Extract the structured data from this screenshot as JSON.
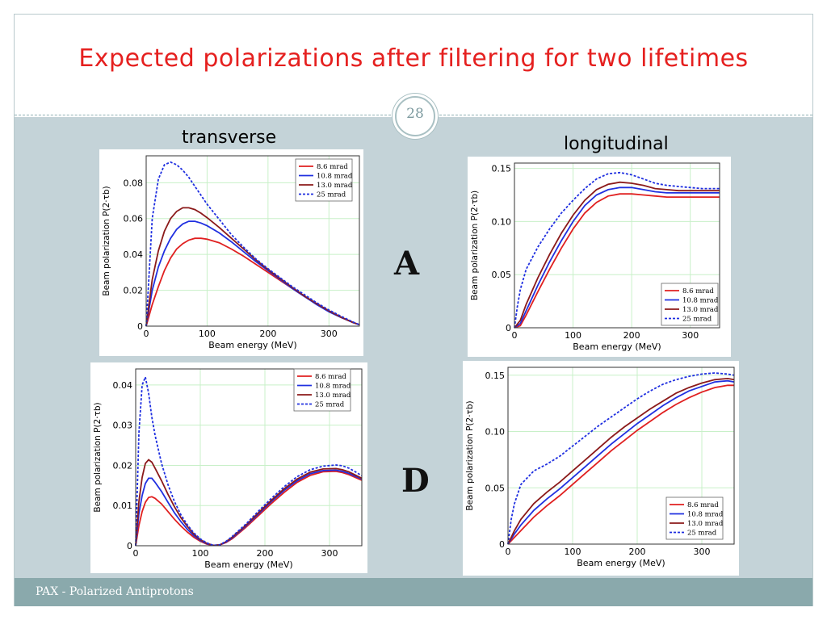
{
  "title": "Expected polarizations after filtering for two lifetimes",
  "page_number": "28",
  "labels": {
    "transverse": "transverse",
    "longitudinal": "longitudinal",
    "row_a": "A",
    "row_d": "D"
  },
  "footer": "PAX - Polarized Antiprotons",
  "colors": {
    "title": "#e5201f",
    "content_bg": "#c4d3d8",
    "footer_bg": "#8aa9ac"
  },
  "chart_data": [
    {
      "id": "transverse-A",
      "type": "line",
      "xlabel": "Beam energy (MeV)",
      "ylabel": "Beam polarization P(2·τb)",
      "xlim": [
        0,
        350
      ],
      "ylim": [
        0,
        0.095
      ],
      "xticks": [
        0,
        100,
        200,
        300
      ],
      "yticks": [
        0,
        0.02,
        0.04,
        0.06,
        0.08
      ],
      "ytick_labels": [
        "0",
        "0.02",
        "0.04",
        "0.06",
        "0.08"
      ],
      "legend": "top-right",
      "grid": true,
      "series": [
        {
          "name": "8.6 mrad",
          "color": "#e02020",
          "dash": false,
          "x": [
            0,
            10,
            20,
            30,
            40,
            50,
            60,
            70,
            80,
            90,
            100,
            120,
            140,
            160,
            180,
            200,
            220,
            240,
            260,
            280,
            300,
            320,
            340,
            350
          ],
          "y": [
            0,
            0.012,
            0.022,
            0.031,
            0.038,
            0.043,
            0.046,
            0.048,
            0.049,
            0.049,
            0.0485,
            0.0465,
            0.043,
            0.039,
            0.0345,
            0.03,
            0.0255,
            0.021,
            0.0165,
            0.0125,
            0.0085,
            0.005,
            0.002,
            0.0008
          ]
        },
        {
          "name": "10.8 mrad",
          "color": "#2030e0",
          "dash": false,
          "x": [
            0,
            10,
            20,
            30,
            40,
            50,
            60,
            70,
            80,
            90,
            100,
            120,
            140,
            160,
            180,
            200,
            220,
            240,
            260,
            280,
            300,
            320,
            340,
            350
          ],
          "y": [
            0,
            0.02,
            0.033,
            0.042,
            0.049,
            0.054,
            0.057,
            0.0585,
            0.0585,
            0.0575,
            0.056,
            0.052,
            0.047,
            0.0415,
            0.036,
            0.031,
            0.026,
            0.021,
            0.0165,
            0.012,
            0.008,
            0.0048,
            0.002,
            0.0008
          ]
        },
        {
          "name": "13.0 mrad",
          "color": "#8b1a1a",
          "dash": false,
          "x": [
            0,
            10,
            20,
            30,
            40,
            50,
            60,
            70,
            80,
            90,
            100,
            120,
            140,
            160,
            180,
            200,
            220,
            240,
            260,
            280,
            300,
            320,
            340,
            350
          ],
          "y": [
            0,
            0.026,
            0.042,
            0.053,
            0.06,
            0.064,
            0.066,
            0.066,
            0.065,
            0.063,
            0.0605,
            0.055,
            0.049,
            0.043,
            0.037,
            0.0315,
            0.0265,
            0.0215,
            0.0168,
            0.0125,
            0.0085,
            0.005,
            0.002,
            0.0008
          ]
        },
        {
          "name": "25 mrad",
          "color": "#1f2fe0",
          "dash": true,
          "x": [
            0,
            10,
            20,
            30,
            40,
            50,
            60,
            70,
            80,
            90,
            100,
            120,
            140,
            160,
            180,
            200,
            220,
            240,
            260,
            280,
            300,
            320,
            340,
            350
          ],
          "y": [
            0,
            0.06,
            0.082,
            0.09,
            0.0915,
            0.09,
            0.087,
            0.083,
            0.078,
            0.073,
            0.068,
            0.0595,
            0.051,
            0.044,
            0.0375,
            0.032,
            0.027,
            0.022,
            0.0175,
            0.013,
            0.009,
            0.0055,
            0.0022,
            0.0008
          ]
        }
      ]
    },
    {
      "id": "longitudinal-A",
      "type": "line",
      "xlabel": "Beam energy (MeV)",
      "ylabel": "Beam polarization P(2·τb)",
      "xlim": [
        0,
        350
      ],
      "ylim": [
        0,
        0.155
      ],
      "xticks": [
        0,
        100,
        200,
        300
      ],
      "yticks": [
        0,
        0.05,
        0.1,
        0.15
      ],
      "ytick_labels": [
        "0",
        "0.05",
        "0.10",
        "0.15"
      ],
      "legend": "bottom-right",
      "grid": true,
      "series": [
        {
          "name": "8.6 mrad",
          "color": "#e02020",
          "dash": false,
          "x": [
            0,
            10,
            20,
            40,
            60,
            80,
            100,
            120,
            140,
            160,
            180,
            200,
            220,
            240,
            260,
            280,
            300,
            320,
            350
          ],
          "y": [
            0,
            0.002,
            0.012,
            0.034,
            0.055,
            0.075,
            0.093,
            0.108,
            0.118,
            0.124,
            0.126,
            0.126,
            0.125,
            0.124,
            0.123,
            0.123,
            0.123,
            0.123,
            0.123
          ]
        },
        {
          "name": "10.8 mrad",
          "color": "#2030e0",
          "dash": false,
          "x": [
            0,
            10,
            20,
            40,
            60,
            80,
            100,
            120,
            140,
            160,
            180,
            200,
            220,
            240,
            260,
            280,
            300,
            320,
            350
          ],
          "y": [
            0,
            0.004,
            0.016,
            0.04,
            0.062,
            0.082,
            0.1,
            0.115,
            0.125,
            0.13,
            0.132,
            0.132,
            0.13,
            0.128,
            0.127,
            0.127,
            0.127,
            0.127,
            0.127
          ]
        },
        {
          "name": "13.0 mrad",
          "color": "#8b1a1a",
          "dash": false,
          "x": [
            0,
            10,
            20,
            40,
            60,
            80,
            100,
            120,
            140,
            160,
            180,
            200,
            220,
            240,
            260,
            280,
            300,
            320,
            350
          ],
          "y": [
            0,
            0.007,
            0.022,
            0.047,
            0.069,
            0.089,
            0.106,
            0.12,
            0.13,
            0.135,
            0.137,
            0.136,
            0.134,
            0.131,
            0.13,
            0.129,
            0.129,
            0.129,
            0.129
          ]
        },
        {
          "name": "25 mrad",
          "color": "#1f2fe0",
          "dash": true,
          "x": [
            0,
            5,
            10,
            20,
            40,
            60,
            80,
            100,
            120,
            140,
            160,
            180,
            200,
            220,
            240,
            260,
            280,
            300,
            320,
            350
          ],
          "y": [
            0,
            0.02,
            0.036,
            0.055,
            0.076,
            0.093,
            0.108,
            0.12,
            0.131,
            0.14,
            0.145,
            0.146,
            0.144,
            0.14,
            0.136,
            0.134,
            0.133,
            0.132,
            0.131,
            0.131
          ]
        }
      ]
    },
    {
      "id": "transverse-D",
      "type": "line",
      "xlabel": "Beam energy (MeV)",
      "ylabel": "Beam polarization P(2·τb)",
      "xlim": [
        0,
        350
      ],
      "ylim": [
        0,
        0.044
      ],
      "xticks": [
        0,
        100,
        200,
        300
      ],
      "yticks": [
        0,
        0.01,
        0.02,
        0.03,
        0.04
      ],
      "ytick_labels": [
        "0",
        "0.01",
        "0.02",
        "0.03",
        "0.04"
      ],
      "legend": "top-right",
      "grid": true,
      "series": [
        {
          "name": "8.6 mrad",
          "color": "#e02020",
          "dash": false,
          "x": [
            0,
            5,
            10,
            15,
            20,
            25,
            30,
            40,
            50,
            60,
            70,
            80,
            90,
            100,
            110,
            120,
            130,
            140,
            150,
            170,
            190,
            210,
            230,
            250,
            270,
            290,
            310,
            320,
            330,
            340,
            350
          ],
          "y": [
            0,
            0.005,
            0.0085,
            0.0108,
            0.012,
            0.0122,
            0.0118,
            0.0104,
            0.0085,
            0.0066,
            0.0049,
            0.0034,
            0.0021,
            0.0011,
            0.0004,
            0.0001,
            0.0002,
            0.0008,
            0.0018,
            0.0045,
            0.0075,
            0.0105,
            0.0133,
            0.0158,
            0.0175,
            0.0184,
            0.0185,
            0.0182,
            0.0177,
            0.017,
            0.0163
          ]
        },
        {
          "name": "10.8 mrad",
          "color": "#2030e0",
          "dash": false,
          "x": [
            0,
            5,
            10,
            15,
            20,
            25,
            30,
            40,
            50,
            60,
            70,
            80,
            90,
            100,
            110,
            120,
            130,
            140,
            150,
            170,
            190,
            210,
            230,
            250,
            270,
            290,
            310,
            320,
            330,
            340,
            350
          ],
          "y": [
            0,
            0.008,
            0.0125,
            0.0155,
            0.0168,
            0.0168,
            0.0158,
            0.0135,
            0.0108,
            0.0082,
            0.006,
            0.0041,
            0.0025,
            0.0013,
            0.0005,
            0.0001,
            0.0002,
            0.0009,
            0.002,
            0.0048,
            0.0079,
            0.011,
            0.0138,
            0.0162,
            0.0179,
            0.0187,
            0.0188,
            0.0185,
            0.018,
            0.0173,
            0.0166
          ]
        },
        {
          "name": "13.0 mrad",
          "color": "#8b1a1a",
          "dash": false,
          "x": [
            0,
            5,
            10,
            15,
            20,
            25,
            30,
            40,
            50,
            60,
            70,
            80,
            90,
            100,
            110,
            120,
            130,
            140,
            150,
            170,
            190,
            210,
            230,
            250,
            270,
            290,
            310,
            320,
            330,
            340,
            350
          ],
          "y": [
            0,
            0.011,
            0.017,
            0.0205,
            0.0214,
            0.0208,
            0.0193,
            0.0162,
            0.0128,
            0.0097,
            0.007,
            0.0048,
            0.0029,
            0.0015,
            0.0006,
            0.0001,
            0.0002,
            0.001,
            0.0022,
            0.005,
            0.0082,
            0.0113,
            0.0142,
            0.0166,
            0.0183,
            0.0191,
            0.0192,
            0.0189,
            0.0184,
            0.0176,
            0.0168
          ]
        },
        {
          "name": "25 mrad",
          "color": "#1f2fe0",
          "dash": true,
          "x": [
            0,
            5,
            10,
            15,
            20,
            25,
            30,
            40,
            50,
            60,
            70,
            80,
            90,
            100,
            110,
            120,
            130,
            140,
            150,
            170,
            190,
            210,
            230,
            250,
            270,
            290,
            310,
            320,
            330,
            340,
            350
          ],
          "y": [
            0,
            0.028,
            0.04,
            0.042,
            0.038,
            0.032,
            0.0275,
            0.0205,
            0.0152,
            0.011,
            0.0077,
            0.0052,
            0.0032,
            0.0017,
            0.0007,
            0.0001,
            0.0002,
            0.0011,
            0.0024,
            0.0053,
            0.0086,
            0.0118,
            0.0147,
            0.0172,
            0.0189,
            0.0198,
            0.0201,
            0.0199,
            0.0193,
            0.0184,
            0.0174
          ]
        }
      ]
    },
    {
      "id": "longitudinal-D",
      "type": "line",
      "xlabel": "Beam energy (MeV)",
      "ylabel": "Beam polarization P(2·τb)",
      "xlim": [
        0,
        350
      ],
      "ylim": [
        0,
        0.157
      ],
      "xticks": [
        0,
        100,
        200,
        300
      ],
      "yticks": [
        0,
        0.05,
        0.1,
        0.15
      ],
      "ytick_labels": [
        "0",
        "0.05",
        "0.10",
        "0.15"
      ],
      "legend": "bottom-right",
      "grid": true,
      "series": [
        {
          "name": "8.6 mrad",
          "color": "#e02020",
          "dash": false,
          "x": [
            0,
            10,
            20,
            40,
            60,
            80,
            100,
            120,
            140,
            160,
            180,
            200,
            220,
            240,
            260,
            280,
            300,
            320,
            340,
            350
          ],
          "y": [
            0,
            0.006,
            0.012,
            0.024,
            0.034,
            0.043,
            0.053,
            0.063,
            0.073,
            0.083,
            0.092,
            0.101,
            0.109,
            0.117,
            0.124,
            0.13,
            0.135,
            0.139,
            0.141,
            0.141
          ]
        },
        {
          "name": "10.8 mrad",
          "color": "#2030e0",
          "dash": false,
          "x": [
            0,
            10,
            20,
            40,
            60,
            80,
            100,
            120,
            140,
            160,
            180,
            200,
            220,
            240,
            260,
            280,
            300,
            320,
            340,
            350
          ],
          "y": [
            0,
            0.009,
            0.017,
            0.03,
            0.04,
            0.049,
            0.059,
            0.069,
            0.079,
            0.089,
            0.098,
            0.107,
            0.115,
            0.123,
            0.13,
            0.136,
            0.14,
            0.144,
            0.145,
            0.144
          ]
        },
        {
          "name": "13.0 mrad",
          "color": "#8b1a1a",
          "dash": false,
          "x": [
            0,
            10,
            20,
            40,
            60,
            80,
            100,
            120,
            140,
            160,
            180,
            200,
            220,
            240,
            260,
            280,
            300,
            320,
            340,
            350
          ],
          "y": [
            0,
            0.012,
            0.022,
            0.036,
            0.046,
            0.055,
            0.065,
            0.075,
            0.085,
            0.095,
            0.104,
            0.112,
            0.12,
            0.127,
            0.134,
            0.139,
            0.143,
            0.146,
            0.147,
            0.146
          ]
        },
        {
          "name": "25 mrad",
          "color": "#1f2fe0",
          "dash": true,
          "x": [
            0,
            5,
            10,
            20,
            40,
            60,
            80,
            100,
            120,
            140,
            160,
            180,
            200,
            220,
            240,
            260,
            280,
            300,
            320,
            340,
            350
          ],
          "y": [
            0,
            0.022,
            0.036,
            0.053,
            0.065,
            0.071,
            0.078,
            0.087,
            0.096,
            0.105,
            0.113,
            0.121,
            0.129,
            0.136,
            0.142,
            0.146,
            0.149,
            0.151,
            0.152,
            0.151,
            0.15
          ]
        }
      ]
    }
  ]
}
